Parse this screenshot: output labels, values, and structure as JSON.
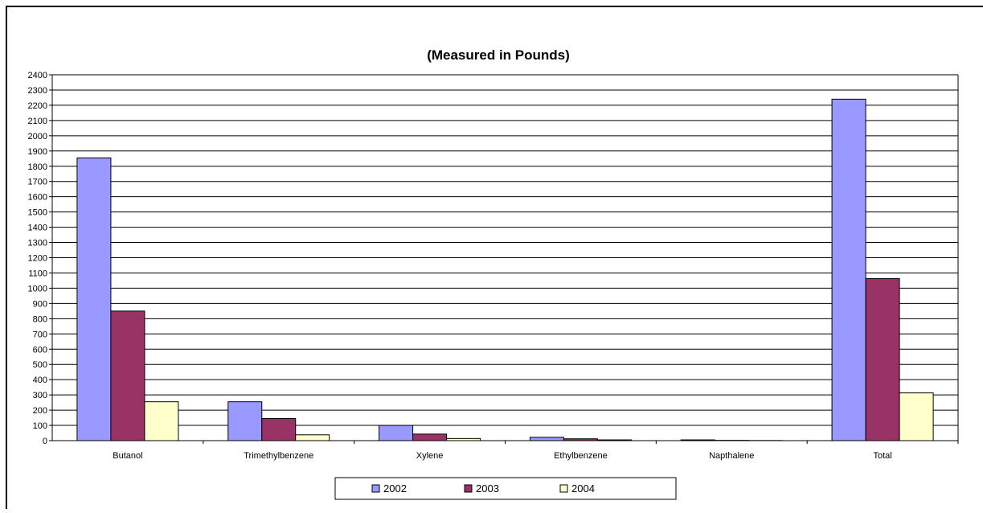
{
  "chart_data": {
    "type": "bar",
    "title": "(Measured in Pounds)",
    "xlabel": "",
    "ylabel": "",
    "categories": [
      "Butanol",
      "Trimethylbenzene",
      "Xylene",
      "Ethylbenzene",
      "Napthalene",
      "Total"
    ],
    "series": [
      {
        "name": "2002",
        "color": "#9999ff",
        "values": [
          1855,
          255,
          100,
          22,
          5,
          2240
        ]
      },
      {
        "name": "2003",
        "color": "#993366",
        "values": [
          850,
          145,
          43,
          12,
          2,
          1063
        ]
      },
      {
        "name": "2004",
        "color": "#ffffcc",
        "values": [
          255,
          38,
          14,
          5,
          1,
          313
        ]
      }
    ],
    "ylim": [
      0,
      2400
    ],
    "yticks": [
      0,
      100,
      200,
      300,
      400,
      500,
      600,
      700,
      800,
      900,
      1000,
      1100,
      1200,
      1300,
      1400,
      1500,
      1600,
      1700,
      1800,
      1900,
      2000,
      2100,
      2200,
      2300,
      2400
    ],
    "grid": true,
    "legend_position": "bottom-center"
  }
}
